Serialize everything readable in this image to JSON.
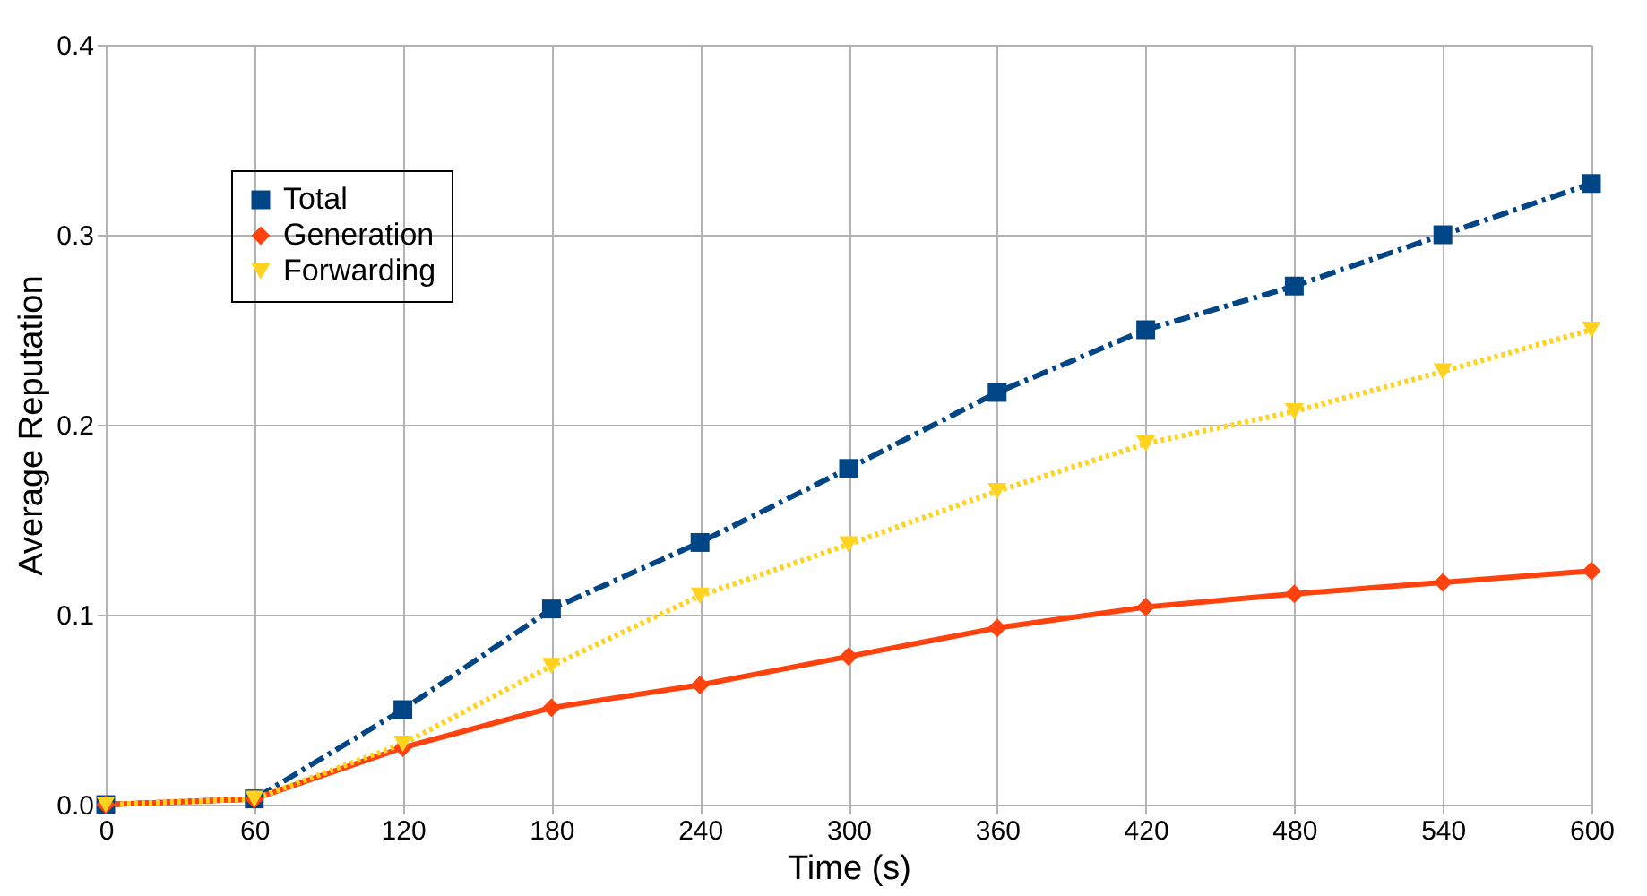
{
  "chart_data": {
    "type": "line",
    "xlabel": "Time (s)",
    "ylabel": "Average Reputation",
    "x": [
      0,
      60,
      120,
      180,
      240,
      300,
      360,
      420,
      480,
      540,
      600
    ],
    "series": [
      {
        "name": "Total",
        "color": "#004586",
        "marker": "square",
        "line_style": "dashed",
        "values": [
          0,
          0.003,
          0.05,
          0.103,
          0.138,
          0.177,
          0.217,
          0.25,
          0.273,
          0.3,
          0.327
        ]
      },
      {
        "name": "Generation",
        "color": "#ff420e",
        "marker": "diamond",
        "line_style": "solid",
        "values": [
          0,
          0.003,
          0.03,
          0.051,
          0.063,
          0.078,
          0.093,
          0.104,
          0.111,
          0.117,
          0.123
        ]
      },
      {
        "name": "Forwarding",
        "color": "#ffd320",
        "marker": "triangle",
        "line_style": "dotted",
        "values": [
          0,
          0.003,
          0.032,
          0.073,
          0.11,
          0.137,
          0.165,
          0.19,
          0.207,
          0.228,
          0.25
        ]
      }
    ],
    "xlim": [
      0,
      600
    ],
    "xticks": [
      0,
      60,
      120,
      180,
      240,
      300,
      360,
      420,
      480,
      540,
      600
    ],
    "ylim": [
      0,
      0.4
    ],
    "yticks": [
      {
        "value": 0,
        "label": "0.0"
      },
      0.1,
      0.2,
      0.3,
      0.4
    ],
    "grid": true,
    "legend": "top left"
  }
}
